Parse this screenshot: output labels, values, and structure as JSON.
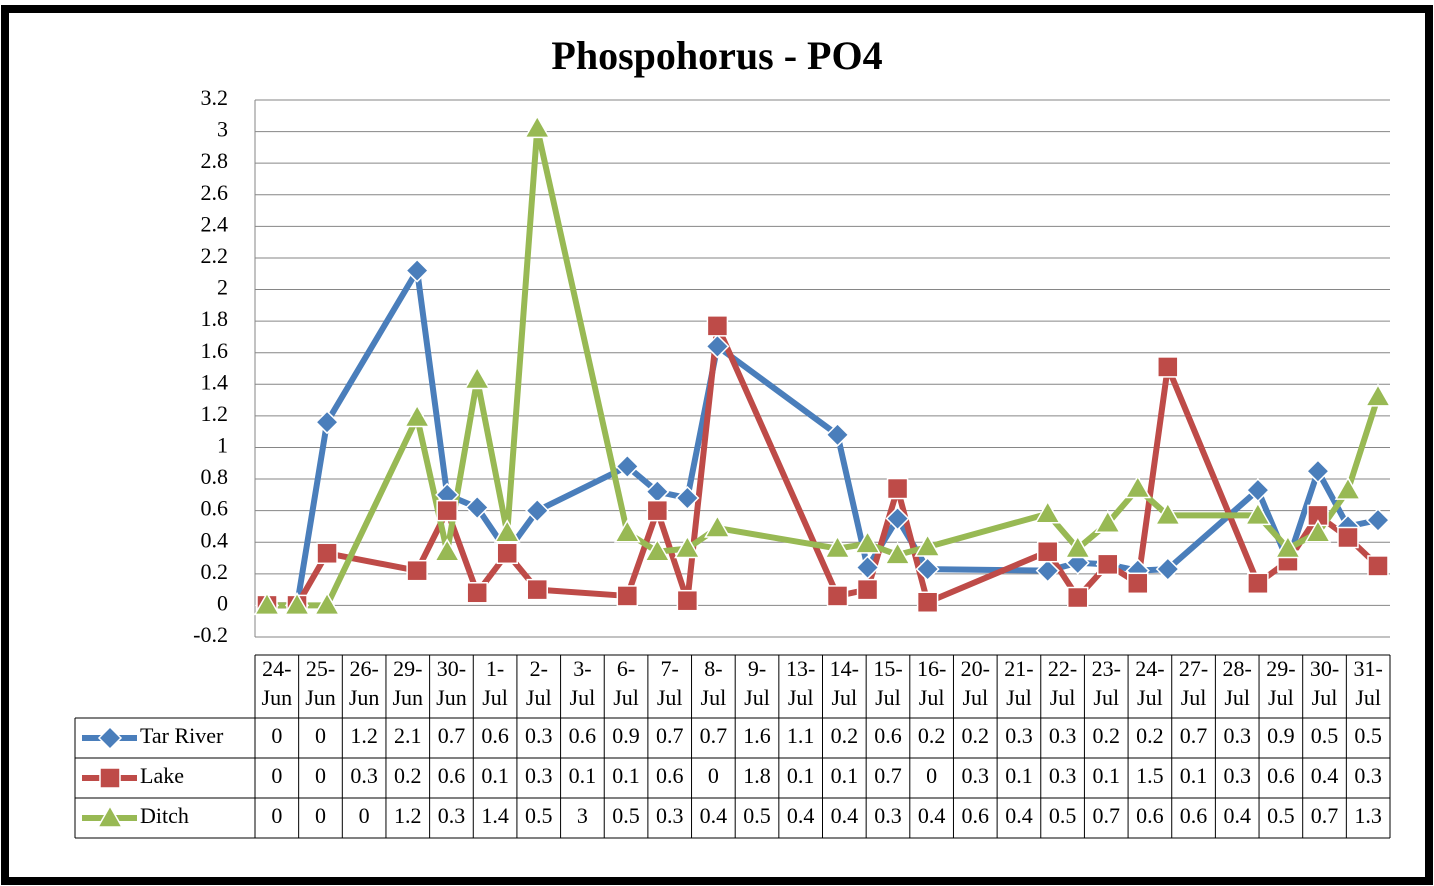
{
  "chart_data": {
    "type": "line",
    "title": "Phospohorus - PO4",
    "categories": [
      "24-Jun",
      "25-Jun",
      "26-Jun",
      "29-Jun",
      "30-Jun",
      "1-Jul",
      "2-Jul",
      "3-Jul",
      "6-Jul",
      "7-Jul",
      "8-Jul",
      "9-Jul",
      "13-Jul",
      "14-Jul",
      "15-Jul",
      "16-Jul",
      "20-Jul",
      "21-Jul",
      "22-Jul",
      "23-Jul",
      "24-Jul",
      "27-Jul",
      "28-Jul",
      "29-Jul",
      "30-Jul",
      "31-Jul"
    ],
    "series": [
      {
        "name": "Tar River",
        "color": "#4a7ebb",
        "values": [
          0,
          0,
          1.16,
          2.12,
          0.7,
          0.62,
          0.34,
          0.6,
          0.88,
          0.72,
          0.68,
          1.64,
          1.08,
          0.24,
          0.55,
          0.23,
          0.22,
          0.27,
          0.26,
          0.22,
          0.23,
          0.73,
          0.28,
          0.85,
          0.5,
          0.54
        ],
        "value_labels": [
          "0",
          "0",
          "1.2",
          "2.1",
          "0.7",
          "0.6",
          "0.3",
          "0.6",
          "0.9",
          "0.7",
          "0.7",
          "1.6",
          "1.1",
          "0.2",
          "0.6",
          "0.2",
          "0.2",
          "0.3",
          "0.3",
          "0.2",
          "0.2",
          "0.7",
          "0.3",
          "0.9",
          "0.5",
          "0.5"
        ]
      },
      {
        "name": "Lake",
        "color": "#be4b48",
        "values": [
          0,
          0,
          0.33,
          0.22,
          0.6,
          0.08,
          0.33,
          0.1,
          0.06,
          0.6,
          0.03,
          1.77,
          0.06,
          0.1,
          0.74,
          0.02,
          0.34,
          0.05,
          0.26,
          0.14,
          1.51,
          0.14,
          0.28,
          0.57,
          0.43,
          0.25
        ],
        "value_labels": [
          "0",
          "0",
          "0.3",
          "0.2",
          "0.6",
          "0.1",
          "0.3",
          "0.1",
          "0.1",
          "0.6",
          "0",
          "1.8",
          "0.1",
          "0.1",
          "0.7",
          "0",
          "0.3",
          "0.1",
          "0.3",
          "0.1",
          "1.5",
          "0.1",
          "0.3",
          "0.6",
          "0.4",
          "0.3"
        ]
      },
      {
        "name": "Ditch",
        "color": "#98b954",
        "values": [
          0,
          0,
          0,
          1.19,
          0.34,
          1.43,
          0.46,
          3.02,
          0.46,
          0.34,
          0.36,
          0.49,
          0.36,
          0.39,
          0.32,
          0.37,
          0.58,
          0.36,
          0.52,
          0.74,
          0.57,
          0.57,
          0.36,
          0.46,
          0.73,
          1.32
        ],
        "value_labels": [
          "0",
          "0",
          "0",
          "1.2",
          "0.3",
          "1.4",
          "0.5",
          "3",
          "0.5",
          "0.3",
          "0.4",
          "0.5",
          "0.4",
          "0.4",
          "0.3",
          "0.4",
          "0.6",
          "0.4",
          "0.5",
          "0.7",
          "0.6",
          "0.6",
          "0.4",
          "0.5",
          "0.7",
          "1.3"
        ]
      }
    ],
    "ylim": [
      -0.2,
      3.2
    ],
    "yticks": [
      -0.2,
      0,
      0.2,
      0.4,
      0.6,
      0.8,
      1,
      1.2,
      1.4,
      1.6,
      1.8,
      2,
      2.2,
      2.4,
      2.6,
      2.8,
      3,
      3.2
    ],
    "grid": true
  }
}
